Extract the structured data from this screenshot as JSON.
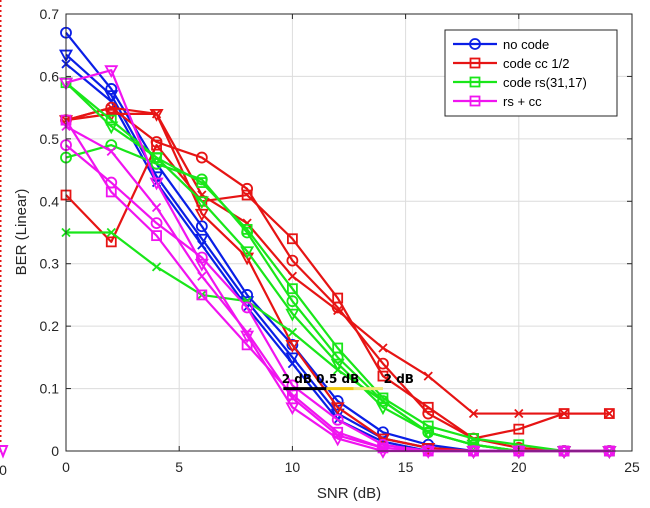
{
  "chart_data": {
    "type": "line",
    "title": "",
    "xlabel": "SNR (dB)",
    "ylabel": "BER (Linear)",
    "xlim": [
      0,
      25
    ],
    "ylim": [
      0,
      0.7
    ],
    "xticks": [
      0,
      5,
      10,
      15,
      20,
      25
    ],
    "yticks": [
      0,
      0.1,
      0.2,
      0.3,
      0.4,
      0.5,
      0.6,
      0.7
    ],
    "grid": true,
    "legend_position": "top-right",
    "series": [
      {
        "name": "no code",
        "color": "#0a1ee6",
        "marker": "o",
        "x": [
          0,
          2,
          4,
          6,
          8,
          10,
          12,
          14,
          16,
          18,
          20,
          22,
          24
        ],
        "y": [
          0.67,
          0.58,
          0.46,
          0.36,
          0.25,
          0.17,
          0.08,
          0.03,
          0.01,
          0,
          0,
          0,
          0
        ]
      },
      {
        "name": "",
        "color": "#0a1ee6",
        "marker": "v",
        "x": [
          0,
          2,
          4,
          6,
          8,
          10,
          12,
          14,
          16,
          18,
          20,
          22,
          24
        ],
        "y": [
          0.635,
          0.57,
          0.44,
          0.34,
          0.24,
          0.15,
          0.06,
          0.02,
          0.005,
          0,
          0,
          0,
          0
        ]
      },
      {
        "name": "",
        "color": "#0a1ee6",
        "marker": "x",
        "x": [
          0,
          2,
          4,
          6,
          8,
          10,
          12,
          14,
          16,
          18,
          20,
          22,
          24
        ],
        "y": [
          0.62,
          0.56,
          0.43,
          0.33,
          0.23,
          0.14,
          0.05,
          0.015,
          0,
          0,
          0,
          0,
          0
        ]
      },
      {
        "name": "code cc 1/2",
        "color": "#e61414",
        "marker": "s",
        "x": [
          0,
          2,
          4,
          6,
          8,
          10,
          12,
          14,
          16,
          18,
          20,
          22,
          24
        ],
        "y": [
          0.41,
          0.335,
          0.49,
          0.4,
          0.41,
          0.34,
          0.245,
          0.12,
          0.07,
          0.02,
          0.035,
          0.06,
          0.06
        ]
      },
      {
        "name": "",
        "color": "#e61414",
        "marker": "o",
        "x": [
          0,
          2,
          4,
          6,
          8,
          10,
          12,
          14,
          16,
          18,
          20,
          22,
          24
        ],
        "y": [
          0.53,
          0.55,
          0.495,
          0.47,
          0.42,
          0.305,
          0.23,
          0.14,
          0.06,
          0.02,
          0.005,
          0,
          0
        ]
      },
      {
        "name": "",
        "color": "#e61414",
        "marker": "v",
        "x": [
          0,
          2,
          4,
          6,
          8,
          10,
          12,
          14,
          16,
          18,
          20,
          22,
          24
        ],
        "y": [
          0.53,
          0.54,
          0.54,
          0.38,
          0.31,
          0.17,
          0.07,
          0.02,
          0.005,
          0,
          0,
          0,
          0
        ]
      },
      {
        "name": "",
        "color": "#e61414",
        "marker": "x",
        "x": [
          0,
          2,
          4,
          6,
          8,
          10,
          12,
          14,
          16,
          18,
          20,
          22,
          24
        ],
        "y": [
          0.53,
          0.55,
          0.54,
          0.41,
          0.365,
          0.28,
          0.225,
          0.165,
          0.12,
          0.06,
          0.06,
          0.06,
          0.06
        ]
      },
      {
        "name": "code rs(31,17)",
        "color": "#19e619",
        "marker": "s",
        "x": [
          0,
          2,
          4,
          6,
          8,
          10,
          12,
          14,
          16,
          18,
          20,
          22,
          24
        ],
        "y": [
          0.59,
          0.53,
          0.47,
          0.43,
          0.355,
          0.26,
          0.165,
          0.085,
          0.04,
          0.02,
          0.01,
          0,
          0
        ]
      },
      {
        "name": "",
        "color": "#19e619",
        "marker": "o",
        "x": [
          0,
          2,
          4,
          6,
          8,
          10,
          12,
          14,
          16,
          18,
          20,
          22,
          24
        ],
        "y": [
          0.47,
          0.49,
          0.46,
          0.435,
          0.35,
          0.24,
          0.15,
          0.08,
          0.03,
          0.01,
          0,
          0,
          0
        ]
      },
      {
        "name": "",
        "color": "#19e619",
        "marker": "v",
        "x": [
          0,
          2,
          4,
          6,
          8,
          10,
          12,
          14,
          16,
          18,
          20,
          22,
          24
        ],
        "y": [
          0.59,
          0.52,
          0.47,
          0.4,
          0.32,
          0.22,
          0.14,
          0.07,
          0.03,
          0.01,
          0,
          0,
          0
        ]
      },
      {
        "name": "",
        "color": "#19e619",
        "marker": "x",
        "x": [
          0,
          2,
          4,
          6,
          8,
          10,
          12,
          14,
          16,
          18,
          20,
          22,
          24
        ],
        "y": [
          0.35,
          0.35,
          0.295,
          0.25,
          0.24,
          0.19,
          0.13,
          0.08,
          0.03,
          0.01,
          0,
          0,
          0
        ]
      },
      {
        "name": "rs + cc",
        "color": "#f014f0",
        "marker": "s",
        "x": [
          0,
          2,
          4,
          6,
          8,
          10,
          12,
          14,
          16,
          18,
          20,
          22,
          24
        ],
        "y": [
          0.53,
          0.415,
          0.345,
          0.25,
          0.17,
          0.09,
          0.03,
          0.005,
          0,
          0,
          0,
          0,
          0
        ]
      },
      {
        "name": "",
        "color": "#f014f0",
        "marker": "o",
        "x": [
          0,
          2,
          4,
          6,
          8,
          10,
          12,
          14,
          16,
          18,
          20,
          22,
          24
        ],
        "y": [
          0.49,
          0.43,
          0.365,
          0.31,
          0.23,
          0.105,
          0.05,
          0.01,
          0,
          0,
          0,
          0,
          0
        ]
      },
      {
        "name": "",
        "color": "#f014f0",
        "marker": "v",
        "x": [
          0,
          2,
          4,
          6,
          8,
          10,
          12,
          14,
          16,
          18,
          20,
          22,
          24
        ],
        "y": [
          0.59,
          0.61,
          0.43,
          0.3,
          0.185,
          0.07,
          0.02,
          0,
          0,
          0,
          0,
          0,
          0
        ]
      },
      {
        "name": "",
        "color": "#f014f0",
        "marker": "x",
        "x": [
          0,
          2,
          4,
          6,
          8,
          10,
          12,
          14,
          16,
          18,
          20,
          22,
          24
        ],
        "y": [
          0.52,
          0.48,
          0.39,
          0.28,
          0.19,
          0.085,
          0.025,
          0.005,
          0,
          0,
          0,
          0,
          0
        ]
      }
    ],
    "annotations": [
      {
        "text": "2 dB",
        "x": 10.2,
        "y": 0.115
      },
      {
        "text": "0.5 dB",
        "x": 12.0,
        "y": 0.115
      },
      {
        "text": "2 dB",
        "x": 14.7,
        "y": 0.115
      }
    ],
    "reference_segments": [
      {
        "x0": 9.6,
        "x1": 11.5,
        "y": 0.1,
        "color": "#000000"
      },
      {
        "x0": 11.5,
        "x1": 12.7,
        "y": 0.1,
        "color": "#f0c80a"
      },
      {
        "x0": 12.7,
        "x1": 14.0,
        "y": 0.1,
        "color": "#f0e678"
      }
    ],
    "clipped_left_axis": {
      "tick_label": "0",
      "marker_color": "#f014f0"
    }
  }
}
